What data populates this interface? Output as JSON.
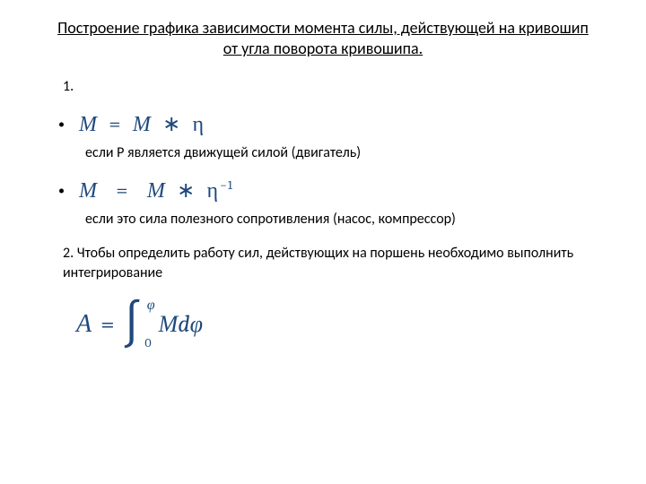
{
  "title": "Построение графика зависимости  момента силы, действующей на кривошип от угла поворота кривошипа.",
  "item1_num": "1.",
  "formula1": {
    "M1": "М",
    "eq": "=",
    "M2": "М",
    "mul": "∗",
    "eta": "η"
  },
  "desc1": "если P является движущей силой (двигатель)",
  "formula2": {
    "M1": "М",
    "eq": "=",
    "M2": "М",
    "mul": "∗",
    "eta": "η",
    "exp": "−1"
  },
  "desc2": "если это сила полезного сопротивления (насос, компрессор)",
  "item2": "2. Чтобы определить работу сил, действующих на поршень необходимо выполнить интегрирование",
  "integral": {
    "A": "А",
    "eq": "=",
    "sign": "∫",
    "upper": "φ",
    "lower": "0",
    "body": "Мdφ"
  },
  "colors": {
    "formula": "#1f497d",
    "text": "#000000",
    "bg": "#ffffff"
  }
}
